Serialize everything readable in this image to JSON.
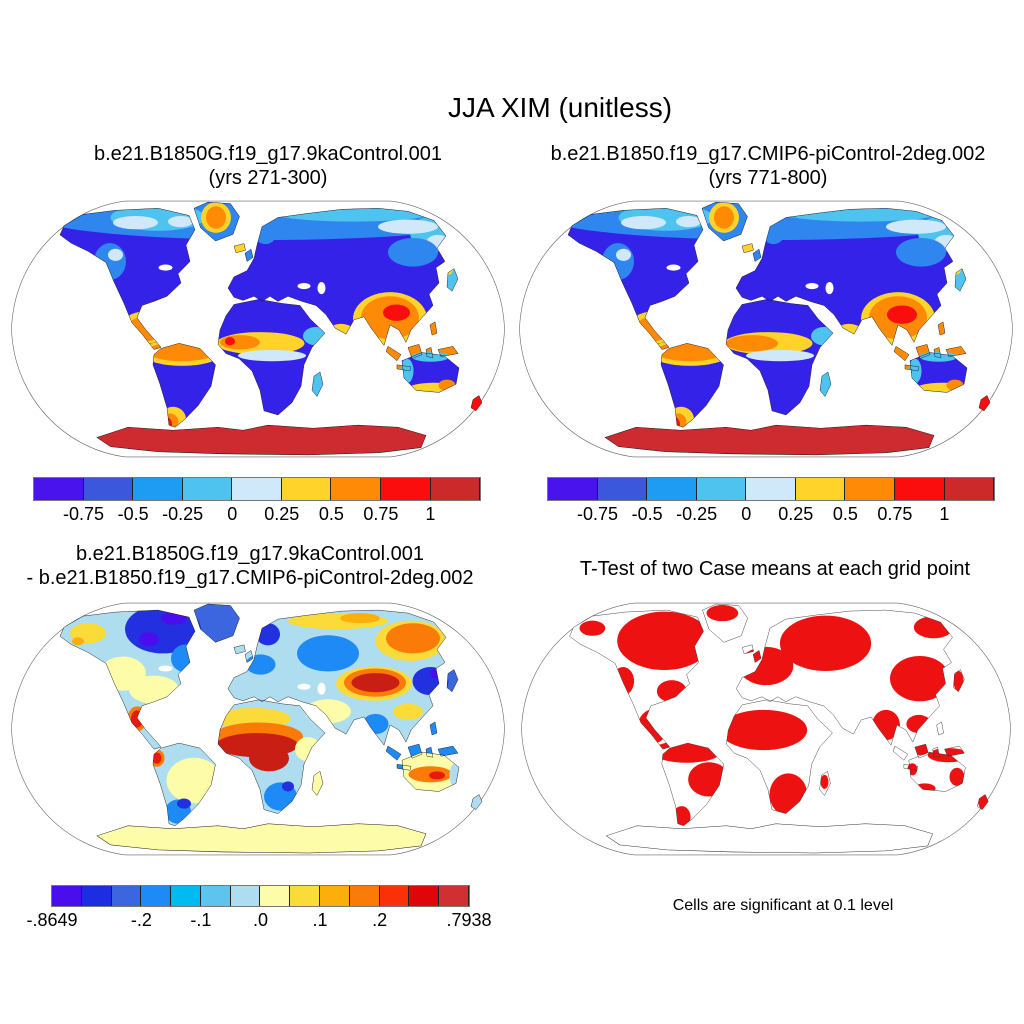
{
  "figure": {
    "title": "JJA XIM (unitless)"
  },
  "panels": {
    "top_left": {
      "line1": "b.e21.B1850G.f19_g17.9kaControl.001",
      "line2": "(yrs 271-300)"
    },
    "top_right": {
      "line1": "b.e21.B1850.f19_g17.CMIP6-piControl-2deg.002",
      "line2": "(yrs 771-800)"
    },
    "bottom_left": {
      "line1": "b.e21.B1850G.f19_g17.9kaControl.001",
      "line2": "- b.e21.B1850.f19_g17.CMIP6-piControl-2deg.002"
    },
    "bottom_right": {
      "title": "T-Test of two Case means at each grid point",
      "caption": "Cells are significant at 0.1 level"
    }
  },
  "colorbars": {
    "mean": {
      "colors": [
        "#4813EC",
        "#3B58DC",
        "#1E9BF2",
        "#4FC3F0",
        "#CFE9FA",
        "#FFD32A",
        "#FF8A05",
        "#FB0D0D",
        "#CC2A2A"
      ],
      "tick_labels": [
        "-0.75",
        "-0.5",
        "-0.25",
        "0",
        "0.25",
        "0.5",
        "0.75",
        "1"
      ]
    },
    "diff": {
      "colors": [
        "#4A0DEE",
        "#1B2FE0",
        "#3B66DF",
        "#1E8AF5",
        "#00BAF2",
        "#5CC4EE",
        "#AFDDF0",
        "#FDFCA8",
        "#FBDB3A",
        "#FCAF0B",
        "#FB7B09",
        "#F93008",
        "#DF0508",
        "#D03031"
      ],
      "tick_labels": [
        "-.8649",
        "-.2",
        "-.1",
        ".0",
        ".1",
        ".2",
        ".7938"
      ],
      "tick_positions": [
        0,
        3,
        5,
        7,
        9,
        11,
        14
      ]
    }
  },
  "map_palette": {
    "mean_deep_blue": "#3522E8",
    "mean_dodger": "#2E86EE",
    "mean_sky": "#4FC3F0",
    "mean_pale": "#CFE9FA",
    "mean_gold": "#FFD32A",
    "mean_orange": "#FF8A05",
    "mean_red": "#F90D0D",
    "mean_dark_red": "#CE2B30",
    "diff_violet": "#4A0DEE",
    "diff_dark_blue": "#2230E0",
    "diff_royal": "#3B66DF",
    "diff_blue": "#1E8AF5",
    "diff_sky": "#5CC4EE",
    "diff_pale_blue": "#AFDDF0",
    "diff_pale_yellow": "#FDFCA8",
    "diff_yellow": "#FBDB3A",
    "diff_amber": "#FCAF0B",
    "diff_orange": "#FB7B09",
    "diff_red": "#E8190D",
    "diff_crimson": "#C81E14",
    "sig_red": "#EE1111",
    "coastline": "#1A1A1A",
    "outline": "#666666",
    "white": "#FFFFFF"
  }
}
